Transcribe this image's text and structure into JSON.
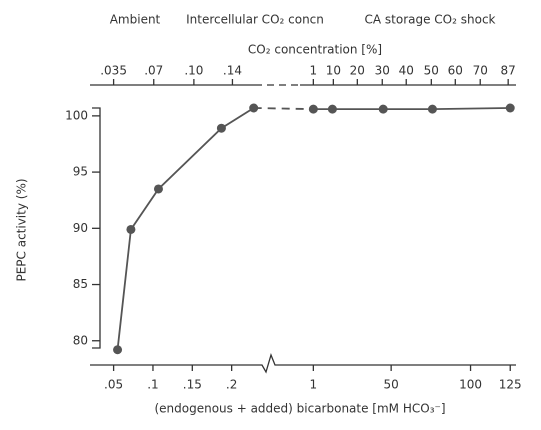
{
  "chart_data": {
    "type": "line",
    "header_labels": [
      "Ambient",
      "Intercellular CO₂ concn",
      "CA storage CO₂ shock"
    ],
    "x2label": "CO₂ concentration [%]",
    "xlabel": "(endogenous + added) bicarbonate [mM HCO₃⁻]",
    "ylabel": "PEPC activity (%)",
    "x_segments": [
      {
        "xlim": [
          0.02,
          0.25
        ],
        "xticks": [
          {
            "value": 0.05,
            "label": ".05"
          },
          {
            "value": 0.1,
            "label": ".1"
          },
          {
            "value": 0.15,
            "label": ".15"
          },
          {
            "value": 0.2,
            "label": ".2"
          }
        ]
      },
      {
        "xlim": [
          -20,
          128
        ],
        "xticks": [
          1,
          50,
          100,
          125
        ]
      }
    ],
    "x2ticks": [
      {
        "value": 0.05,
        "label": ".035"
      },
      {
        "value": 0.101,
        "label": ".07"
      },
      {
        "value": 0.152,
        "label": ".10"
      },
      {
        "value": 0.201,
        "label": ".14"
      },
      {
        "value": 1,
        "label": "1"
      },
      {
        "value": 13.6,
        "label": "10"
      },
      {
        "value": 28.7,
        "label": "20"
      },
      {
        "value": 44.4,
        "label": "30"
      },
      {
        "value": 59.5,
        "label": "40"
      },
      {
        "value": 75.3,
        "label": "50"
      },
      {
        "value": 90.4,
        "label": "60"
      },
      {
        "value": 106.1,
        "label": "70"
      },
      {
        "value": 123.7,
        "label": "87"
      }
    ],
    "ylim": [
      79,
      100.7
    ],
    "yticks": [
      80,
      85,
      90,
      95,
      100
    ],
    "color": "#555555",
    "x": [
      0.055,
      0.072,
      0.107,
      0.187,
      0.228,
      1,
      13,
      45,
      76,
      125
    ],
    "values": [
      79.2,
      89.9,
      93.5,
      98.9,
      100.7,
      100.6,
      100.6,
      100.6,
      100.6,
      100.7
    ]
  }
}
